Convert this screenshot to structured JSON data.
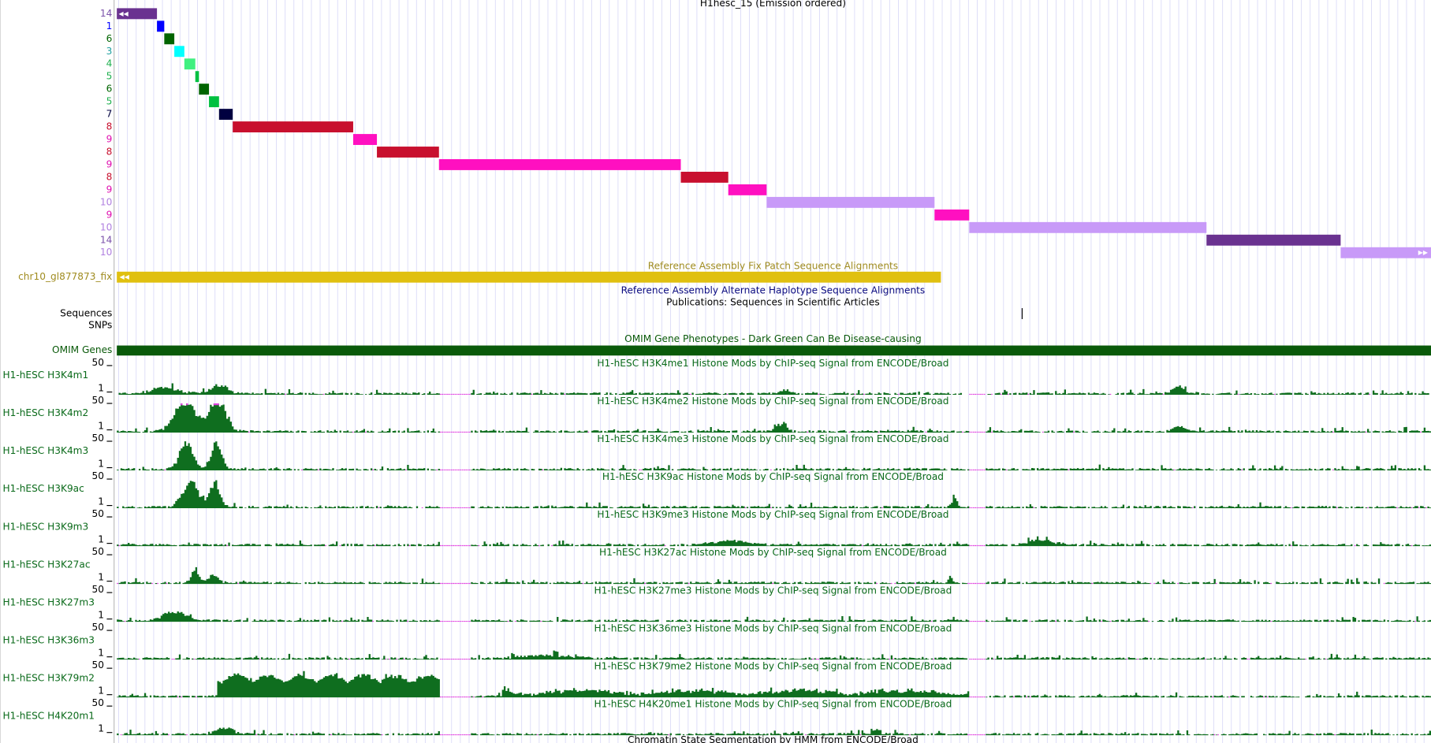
{
  "header": {
    "title": "H1hesc_15 (Emission ordered)"
  },
  "chromatin_states": [
    "14",
    "1",
    "6",
    "3",
    "4",
    "5",
    "6",
    "5",
    "7",
    "8",
    "9",
    "8",
    "9",
    "8",
    "9",
    "10",
    "9",
    "10",
    "14",
    "10"
  ],
  "fix_patch": {
    "title": "Reference Assembly Fix Patch Sequence Alignments",
    "label": "chr10_gl877873_fix"
  },
  "alt_haplotype": {
    "title": "Reference Assembly Alternate Haplotype Sequence Alignments"
  },
  "publications": {
    "title": "Publications: Sequences in Scientific Articles"
  },
  "sequences": {
    "label": "Sequences"
  },
  "snps": {
    "label": "SNPs"
  },
  "omim": {
    "title": "OMIM Gene Phenotypes - Dark Green Can Be Disease-causing",
    "label": "OMIM Genes"
  },
  "signal_tracks": [
    {
      "label": "H1-hESC H3K4m1",
      "title": "H1-hESC H3K4me1 Histone Mods by ChIP-seq Signal from ENCODE/Broad",
      "max": 50,
      "min": 1
    },
    {
      "label": "H1-hESC H3K4m2",
      "title": "H1-hESC H3K4me2 Histone Mods by ChIP-seq Signal from ENCODE/Broad",
      "max": 50,
      "min": 1
    },
    {
      "label": "H1-hESC H3K4m3",
      "title": "H1-hESC H3K4me3 Histone Mods by ChIP-seq Signal from ENCODE/Broad",
      "max": 50,
      "min": 1
    },
    {
      "label": "H1-hESC H3K9ac",
      "title": "H1-hESC H3K9ac Histone Mods by ChIP-seq Signal from ENCODE/Broad",
      "max": 50,
      "min": 1
    },
    {
      "label": "H1-hESC H3K9m3",
      "title": "H1-hESC H3K9me3 Histone Mods by ChIP-seq Signal from ENCODE/Broad",
      "max": 50,
      "min": 1
    },
    {
      "label": "H1-hESC H3K27ac",
      "title": "H1-hESC H3K27ac Histone Mods by ChIP-seq Signal from ENCODE/Broad",
      "max": 50,
      "min": 1
    },
    {
      "label": "H1-hESC H3K27m3",
      "title": "H1-hESC H3K27me3 Histone Mods by ChIP-seq Signal from ENCODE/Broad",
      "max": 50,
      "min": 1
    },
    {
      "label": "H1-hESC H3K36m3",
      "title": "H1-hESC H3K36me3 Histone Mods by ChIP-seq Signal from ENCODE/Broad",
      "max": 50,
      "min": 1
    },
    {
      "label": "H1-hESC H3K79m2",
      "title": "H1-hESC H3K79me2 Histone Mods by ChIP-seq Signal from ENCODE/Broad",
      "max": 50,
      "min": 1
    },
    {
      "label": "H1-hESC H4K20m1",
      "title": "H1-hESC H4K20me1 Histone Mods by ChIP-seq Signal from ENCODE/Broad",
      "max": 50,
      "min": 1
    }
  ],
  "footer": {
    "title": "Chromatin State Segmentation by HMM from ENCODE/Broad"
  }
}
